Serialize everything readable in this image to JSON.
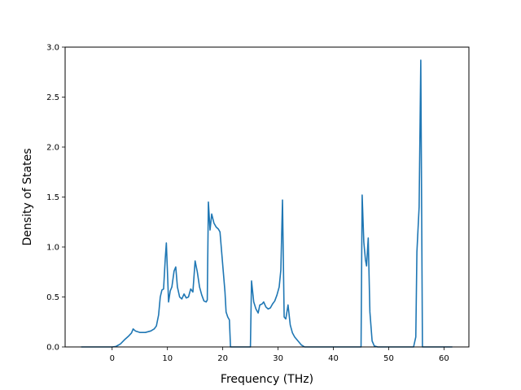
{
  "chart_data": {
    "type": "line",
    "title": "",
    "xlabel": "Frequency (THz)",
    "ylabel": "Density of States",
    "xlim": [
      -8.5,
      64.5
    ],
    "ylim": [
      0,
      3.0
    ],
    "xticks": [
      0,
      10,
      20,
      30,
      40,
      50,
      60
    ],
    "yticks": [
      0.0,
      0.5,
      1.0,
      1.5,
      2.0,
      2.5,
      3.0
    ],
    "ytick_labels": [
      "0.0",
      "0.5",
      "1.0",
      "1.5",
      "2.0",
      "2.5",
      "3.0"
    ],
    "grid": false,
    "legend": "none",
    "series": [
      {
        "color": "#1f77b4",
        "points": [
          [
            -5.6,
            0
          ],
          [
            -3,
            0
          ],
          [
            0,
            0
          ],
          [
            0.7,
            0.005
          ],
          [
            1.5,
            0.03
          ],
          [
            2.2,
            0.07
          ],
          [
            3,
            0.11
          ],
          [
            3.5,
            0.14
          ],
          [
            3.8,
            0.18
          ],
          [
            4.2,
            0.16
          ],
          [
            5,
            0.145
          ],
          [
            6,
            0.145
          ],
          [
            7,
            0.16
          ],
          [
            7.6,
            0.18
          ],
          [
            8,
            0.21
          ],
          [
            8.4,
            0.32
          ],
          [
            8.7,
            0.5
          ],
          [
            9,
            0.57
          ],
          [
            9.3,
            0.58
          ],
          [
            9.6,
            0.88
          ],
          [
            9.8,
            1.04
          ],
          [
            10,
            0.75
          ],
          [
            10.2,
            0.45
          ],
          [
            10.5,
            0.56
          ],
          [
            10.8,
            0.6
          ],
          [
            11.2,
            0.76
          ],
          [
            11.5,
            0.8
          ],
          [
            11.8,
            0.6
          ],
          [
            12.2,
            0.5
          ],
          [
            12.6,
            0.48
          ],
          [
            13,
            0.53
          ],
          [
            13.4,
            0.49
          ],
          [
            13.8,
            0.5
          ],
          [
            14.2,
            0.58
          ],
          [
            14.6,
            0.55
          ],
          [
            15,
            0.86
          ],
          [
            15.4,
            0.75
          ],
          [
            15.8,
            0.6
          ],
          [
            16.2,
            0.52
          ],
          [
            16.6,
            0.46
          ],
          [
            17,
            0.45
          ],
          [
            17.2,
            0.47
          ],
          [
            17.4,
            1.45
          ],
          [
            17.7,
            1.17
          ],
          [
            18,
            1.33
          ],
          [
            18.4,
            1.24
          ],
          [
            18.8,
            1.2
          ],
          [
            19.2,
            1.18
          ],
          [
            19.5,
            1.15
          ],
          [
            19.8,
            0.95
          ],
          [
            20.1,
            0.75
          ],
          [
            20.4,
            0.55
          ],
          [
            20.6,
            0.35
          ],
          [
            20.9,
            0.3
          ],
          [
            21.2,
            0.27
          ],
          [
            21.4,
            0.0
          ],
          [
            25,
            0
          ],
          [
            25.2,
            0.66
          ],
          [
            25.6,
            0.45
          ],
          [
            26,
            0.38
          ],
          [
            26.4,
            0.34
          ],
          [
            26.7,
            0.42
          ],
          [
            27.1,
            0.43
          ],
          [
            27.4,
            0.45
          ],
          [
            27.8,
            0.4
          ],
          [
            28.2,
            0.38
          ],
          [
            28.6,
            0.39
          ],
          [
            29,
            0.43
          ],
          [
            29.4,
            0.46
          ],
          [
            29.8,
            0.52
          ],
          [
            30.2,
            0.6
          ],
          [
            30.5,
            0.77
          ],
          [
            30.8,
            1.47
          ],
          [
            31.1,
            0.3
          ],
          [
            31.4,
            0.28
          ],
          [
            31.8,
            0.42
          ],
          [
            32.2,
            0.22
          ],
          [
            32.6,
            0.14
          ],
          [
            33,
            0.1
          ],
          [
            33.6,
            0.06
          ],
          [
            34.2,
            0.02
          ],
          [
            34.8,
            0.0
          ],
          [
            45,
            0
          ],
          [
            45.2,
            1.52
          ],
          [
            45.5,
            1.05
          ],
          [
            45.8,
            0.87
          ],
          [
            46,
            0.81
          ],
          [
            46.3,
            1.09
          ],
          [
            46.6,
            0.35
          ],
          [
            47,
            0.06
          ],
          [
            47.4,
            0.01
          ],
          [
            48,
            0
          ],
          [
            54.5,
            0
          ],
          [
            54.9,
            0.1
          ],
          [
            55.1,
            0.95
          ],
          [
            55.5,
            1.4
          ],
          [
            55.8,
            2.87
          ],
          [
            56.1,
            0.0
          ],
          [
            58,
            0
          ],
          [
            61.5,
            0
          ]
        ]
      }
    ]
  }
}
